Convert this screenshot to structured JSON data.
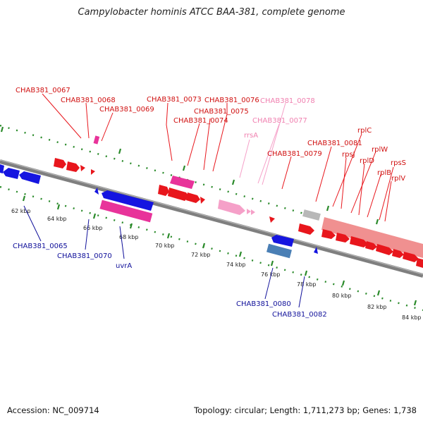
{
  "title": "Campylobacter hominis ATCC BAA-381, complete genome",
  "accession": "Accession: NC_009714",
  "info": "Topology: circular; Length: 1,711,273 bp; Genes: 1,738",
  "colors": {
    "forward": "#e8161c",
    "reverse": "#1515e0",
    "rrna": "#f5a0c8",
    "pink": "#e8339a",
    "label_fwd": "#d01010",
    "label_rev": "#10109a",
    "label_rrna": "#f080b0",
    "tick": "#2a8a2a",
    "backbone": "#7f7f7f"
  },
  "ticks": [
    "62 kbp",
    "64 kbp",
    "66 kbp",
    "68 kbp",
    "70 kbp",
    "72 kbp",
    "74 kbp",
    "76 kbp",
    "78 kbp",
    "80 kbp",
    "82 kbp",
    "84 kbp"
  ],
  "labels": {
    "l0067": "CHAB381_0067",
    "l0068": "CHAB381_0068",
    "l0069": "CHAB381_0069",
    "l0073": "CHAB381_0073",
    "l0076": "CHAB381_0076",
    "l0078": "CHAB381_0078",
    "l0075": "CHAB381_0075",
    "l0074": "CHAB381_0074",
    "l0077": "CHAB381_0077",
    "rrsA": "rrsA",
    "l0079": "CHAB381_0079",
    "l0081": "CHAB381_0081",
    "rplC": "rplC",
    "rpsJ": "rpsJ",
    "rplW": "rplW",
    "rplD": "rplD",
    "rpsS": "rpsS",
    "rplB": "rplB",
    "rplV": "rplV",
    "l0065": "CHAB381_0065",
    "l0070": "CHAB381_0070",
    "uvrA": "uvrA",
    "l0080": "CHAB381_0080",
    "l0082": "CHAB381_0082"
  }
}
